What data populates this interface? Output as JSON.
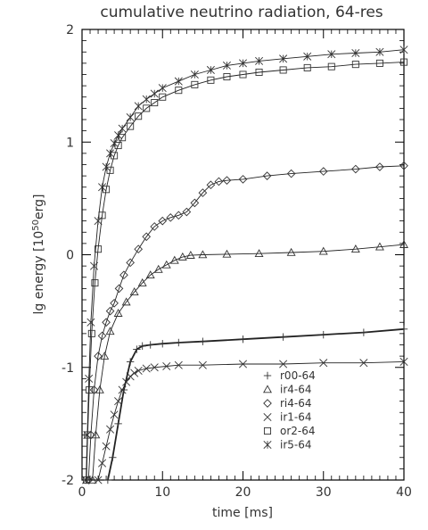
{
  "chart_data": {
    "type": "line",
    "title": "cumulative neutrino radiation, 64-res",
    "xlabel": "time [ms]",
    "ylabel_main": "lg energy [10",
    "ylabel_sup": "50",
    "ylabel_tail": "erg]",
    "xlim": [
      0,
      40
    ],
    "ylim": [
      -2,
      2
    ],
    "xticks": [
      0,
      10,
      20,
      30,
      40
    ],
    "xtick_labels": [
      "0",
      "10",
      "20",
      "30",
      "40"
    ],
    "yticks": [
      -2,
      -1,
      0,
      1,
      2
    ],
    "ytick_labels": [
      "-2",
      "-1",
      "0",
      "1",
      "2"
    ],
    "grid": false,
    "legend_position": "bottom-right",
    "series": [
      {
        "name": "r00-64",
        "marker": "plus",
        "x": [
          3.2,
          3.8,
          4.5,
          5.2,
          6.0,
          6.8,
          7.5,
          8.5,
          10,
          12,
          15,
          20,
          25,
          30,
          35,
          40
        ],
        "y": [
          -2.0,
          -1.8,
          -1.5,
          -1.2,
          -0.95,
          -0.84,
          -0.81,
          -0.8,
          -0.79,
          -0.78,
          -0.77,
          -0.75,
          -0.73,
          -0.71,
          -0.69,
          -0.66
        ]
      },
      {
        "name": "ir4-64",
        "marker": "triangle",
        "x": [
          1.3,
          1.7,
          2.2,
          2.8,
          3.5,
          4.5,
          5.5,
          6.5,
          7.5,
          8.5,
          9.5,
          10.5,
          11.5,
          12.5,
          13.5,
          15,
          18,
          22,
          26,
          30,
          34,
          37,
          40
        ],
        "y": [
          -2.0,
          -1.6,
          -1.2,
          -0.9,
          -0.68,
          -0.52,
          -0.42,
          -0.33,
          -0.25,
          -0.18,
          -0.13,
          -0.09,
          -0.05,
          -0.02,
          -0.005,
          0.0,
          0.005,
          0.01,
          0.02,
          0.03,
          0.05,
          0.07,
          0.09
        ]
      },
      {
        "name": "ri4-64",
        "marker": "diamond",
        "x": [
          0.8,
          1.1,
          1.5,
          2.0,
          2.5,
          3.0,
          3.5,
          4.0,
          4.6,
          5.2,
          6.0,
          7.0,
          8.0,
          9.0,
          10.0,
          11.0,
          12.0,
          13.0,
          14.0,
          15.0,
          16.0,
          17.0,
          18.0,
          20,
          23,
          26,
          30,
          34,
          37,
          40
        ],
        "y": [
          -2.0,
          -1.6,
          -1.2,
          -0.9,
          -0.72,
          -0.6,
          -0.5,
          -0.43,
          -0.3,
          -0.18,
          -0.07,
          0.05,
          0.16,
          0.25,
          0.3,
          0.33,
          0.35,
          0.38,
          0.46,
          0.55,
          0.62,
          0.65,
          0.66,
          0.67,
          0.7,
          0.72,
          0.74,
          0.76,
          0.78,
          0.79
        ]
      },
      {
        "name": "ir1-64",
        "marker": "cross",
        "x": [
          2.0,
          2.5,
          3.0,
          3.5,
          4.0,
          4.5,
          5.0,
          5.5,
          6.0,
          6.5,
          7.0,
          8.0,
          9.0,
          10.5,
          12,
          15,
          20,
          25,
          30,
          35,
          40
        ],
        "y": [
          -2.0,
          -1.85,
          -1.7,
          -1.55,
          -1.42,
          -1.3,
          -1.2,
          -1.13,
          -1.08,
          -1.05,
          -1.03,
          -1.01,
          -1.0,
          -0.99,
          -0.98,
          -0.98,
          -0.97,
          -0.97,
          -0.96,
          -0.96,
          -0.95
        ]
      },
      {
        "name": "or2-64",
        "marker": "square",
        "x": [
          0.55,
          0.7,
          0.9,
          1.2,
          1.6,
          2.0,
          2.5,
          3.0,
          3.5,
          4.0,
          4.5,
          5.0,
          6.0,
          7.0,
          8.0,
          9.0,
          10,
          12,
          14,
          16,
          18,
          20,
          22,
          25,
          28,
          31,
          34,
          37,
          40
        ],
        "y": [
          -2.0,
          -1.6,
          -1.2,
          -0.7,
          -0.25,
          0.05,
          0.35,
          0.58,
          0.75,
          0.88,
          0.97,
          1.04,
          1.14,
          1.23,
          1.3,
          1.35,
          1.4,
          1.46,
          1.51,
          1.55,
          1.58,
          1.6,
          1.62,
          1.64,
          1.66,
          1.67,
          1.69,
          1.7,
          1.71
        ]
      },
      {
        "name": "ir5-64",
        "marker": "asterisk",
        "x": [
          0.5,
          0.65,
          0.85,
          1.1,
          1.5,
          2.0,
          2.5,
          3.0,
          3.5,
          4.0,
          4.5,
          5.0,
          6.0,
          7.0,
          8.0,
          9.0,
          10,
          12,
          14,
          16,
          18,
          20,
          22,
          25,
          28,
          31,
          34,
          37,
          40
        ],
        "y": [
          -2.0,
          -1.6,
          -1.1,
          -0.6,
          -0.1,
          0.3,
          0.6,
          0.78,
          0.9,
          0.99,
          1.06,
          1.12,
          1.22,
          1.32,
          1.38,
          1.43,
          1.48,
          1.54,
          1.6,
          1.64,
          1.68,
          1.7,
          1.72,
          1.74,
          1.76,
          1.78,
          1.79,
          1.8,
          1.82
        ]
      }
    ]
  }
}
